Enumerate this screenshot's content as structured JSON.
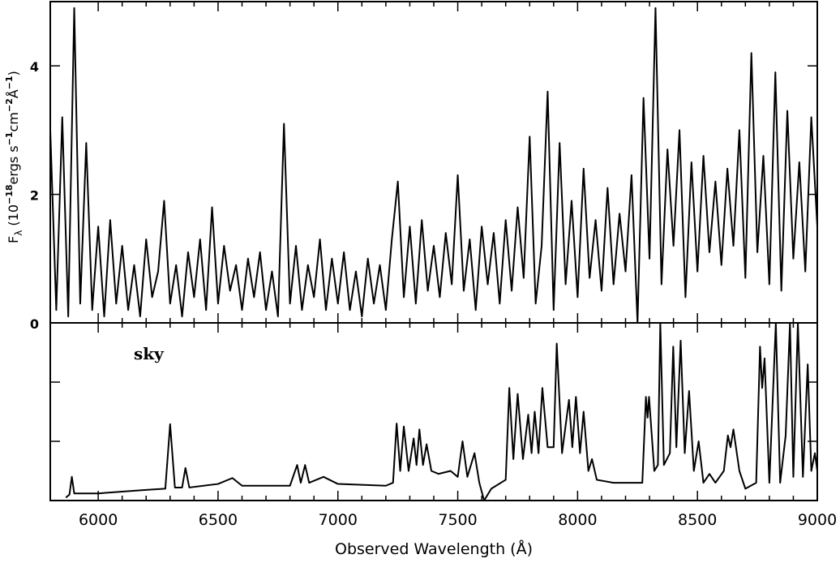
{
  "chart_data": [
    {
      "type": "line",
      "ylabel_parts": [
        "F",
        "λ",
        " (10",
        "−18",
        "ergs s",
        "−1",
        "cm",
        "−2",
        "Å",
        "−1",
        ")"
      ],
      "xlim": [
        5800,
        9000
      ],
      "xticks": [
        6000,
        6500,
        7000,
        7500,
        8000,
        8500,
        9000
      ],
      "ylim": [
        0,
        5
      ],
      "yticks": [
        0,
        2,
        4
      ],
      "series": [
        {
          "color": "#000000",
          "x": [
            5800,
            5825,
            5850,
            5875,
            5900,
            5925,
            5950,
            5975,
            6000,
            6025,
            6050,
            6075,
            6100,
            6125,
            6150,
            6175,
            6200,
            6225,
            6250,
            6275,
            6300,
            6325,
            6350,
            6375,
            6400,
            6425,
            6450,
            6475,
            6500,
            6525,
            6550,
            6575,
            6600,
            6625,
            6650,
            6675,
            6700,
            6725,
            6750,
            6775,
            6800,
            6825,
            6850,
            6875,
            6900,
            6925,
            6950,
            6975,
            7000,
            7025,
            7050,
            7075,
            7100,
            7125,
            7150,
            7175,
            7200,
            7225,
            7250,
            7275,
            7300,
            7325,
            7350,
            7375,
            7400,
            7425,
            7450,
            7475,
            7500,
            7525,
            7550,
            7575,
            7600,
            7625,
            7650,
            7675,
            7700,
            7725,
            7750,
            7775,
            7800,
            7825,
            7850,
            7875,
            7900,
            7925,
            7950,
            7975,
            8000,
            8025,
            8050,
            8075,
            8100,
            8125,
            8150,
            8175,
            8200,
            8225,
            8250,
            8275,
            8300,
            8325,
            8350,
            8375,
            8400,
            8425,
            8450,
            8475,
            8500,
            8525,
            8550,
            8575,
            8600,
            8625,
            8650,
            8675,
            8700,
            8725,
            8750,
            8775,
            8800,
            8825,
            8850,
            8875,
            8900,
            8925,
            8950,
            8975,
            9000
          ],
          "values": [
            3.0,
            0.2,
            3.2,
            0.1,
            4.9,
            0.3,
            2.8,
            0.2,
            1.5,
            0.1,
            1.6,
            0.3,
            1.2,
            0.2,
            0.9,
            0.1,
            1.3,
            0.4,
            0.8,
            1.9,
            0.3,
            0.9,
            0.1,
            1.1,
            0.4,
            1.3,
            0.2,
            1.8,
            0.3,
            1.2,
            0.5,
            0.9,
            0.2,
            1.0,
            0.4,
            1.1,
            0.2,
            0.8,
            0.1,
            3.1,
            0.3,
            1.2,
            0.2,
            0.9,
            0.4,
            1.3,
            0.2,
            1.0,
            0.3,
            1.1,
            0.2,
            0.8,
            0.1,
            1.0,
            0.3,
            0.9,
            0.2,
            1.3,
            2.2,
            0.4,
            1.5,
            0.3,
            1.6,
            0.5,
            1.2,
            0.4,
            1.4,
            0.6,
            2.3,
            0.5,
            1.3,
            0.2,
            1.5,
            0.6,
            1.4,
            0.3,
            1.6,
            0.5,
            1.8,
            0.7,
            2.9,
            0.3,
            1.2,
            3.6,
            0.2,
            2.8,
            0.6,
            1.9,
            0.4,
            2.4,
            0.7,
            1.6,
            0.5,
            2.1,
            0.6,
            1.7,
            0.8,
            2.3,
            0.0,
            3.5,
            1.0,
            4.9,
            0.6,
            2.7,
            1.2,
            3.0,
            0.4,
            2.5,
            0.8,
            2.6,
            1.1,
            2.2,
            0.9,
            2.4,
            1.2,
            3.0,
            0.7,
            4.2,
            1.1,
            2.6,
            0.6,
            3.9,
            0.5,
            3.3,
            1.0,
            2.5,
            0.8,
            3.2,
            1.5
          ]
        }
      ]
    },
    {
      "type": "line",
      "annotation": "sky",
      "xlabel": "Observed Wavelength (Å)",
      "xlim": [
        5800,
        9000
      ],
      "xticks": [
        6000,
        6500,
        7000,
        7500,
        8000,
        8500,
        9000
      ],
      "ylim": [
        0,
        3
      ],
      "yticks": [
        1,
        2
      ],
      "series": [
        {
          "color": "#000000",
          "x": [
            5865,
            5880,
            5890,
            5900,
            6000,
            6100,
            6200,
            6280,
            6300,
            6320,
            6350,
            6364,
            6380,
            6500,
            6560,
            6600,
            6800,
            6830,
            6845,
            6863,
            6880,
            6940,
            7000,
            7200,
            7230,
            7245,
            7260,
            7275,
            7295,
            7316,
            7328,
            7340,
            7355,
            7370,
            7390,
            7420,
            7470,
            7500,
            7520,
            7540,
            7570,
            7590,
            7610,
            7640,
            7700,
            7715,
            7732,
            7750,
            7772,
            7794,
            7808,
            7821,
            7837,
            7853,
            7875,
            7900,
            7913,
            7935,
            7964,
            7978,
            7993,
            8010,
            8025,
            8045,
            8060,
            8080,
            8150,
            8270,
            8285,
            8292,
            8298,
            8320,
            8335,
            8345,
            8360,
            8385,
            8399,
            8412,
            8430,
            8447,
            8465,
            8485,
            8505,
            8525,
            8550,
            8575,
            8610,
            8627,
            8638,
            8650,
            8675,
            8700,
            8745,
            8761,
            8770,
            8780,
            8800,
            8827,
            8845,
            8868,
            8886,
            8900,
            8919,
            8940,
            8960,
            8975,
            8990,
            9000
          ],
          "values": [
            0.05,
            0.1,
            0.4,
            0.12,
            0.12,
            0.15,
            0.18,
            0.2,
            1.29,
            0.22,
            0.22,
            0.55,
            0.22,
            0.28,
            0.38,
            0.25,
            0.25,
            0.6,
            0.3,
            0.6,
            0.3,
            0.4,
            0.28,
            0.25,
            0.3,
            1.3,
            0.5,
            1.25,
            0.5,
            1.05,
            0.6,
            1.2,
            0.6,
            0.95,
            0.5,
            0.45,
            0.5,
            0.4,
            1.0,
            0.4,
            0.8,
            0.3,
            0.0,
            0.2,
            0.35,
            1.9,
            0.7,
            1.8,
            0.7,
            1.45,
            0.8,
            1.5,
            0.8,
            1.9,
            0.9,
            0.9,
            2.65,
            0.8,
            1.7,
            0.9,
            1.75,
            0.8,
            1.5,
            0.5,
            0.7,
            0.35,
            0.3,
            0.3,
            1.75,
            1.4,
            1.75,
            0.5,
            0.6,
            3.0,
            0.6,
            0.8,
            2.6,
            0.9,
            2.7,
            0.8,
            1.85,
            0.5,
            1.0,
            0.3,
            0.45,
            0.3,
            0.5,
            1.1,
            0.9,
            1.2,
            0.5,
            0.2,
            0.3,
            2.6,
            1.9,
            2.4,
            0.3,
            3.0,
            0.3,
            1.1,
            3.0,
            0.4,
            3.0,
            0.4,
            2.3,
            0.5,
            0.8,
            0.5
          ]
        }
      ]
    }
  ]
}
